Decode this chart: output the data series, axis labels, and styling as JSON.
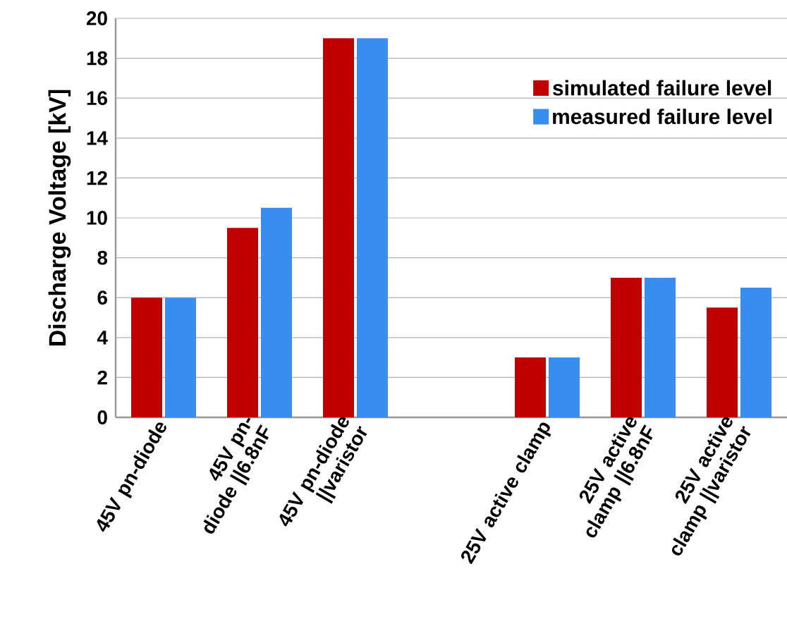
{
  "chart_data": {
    "type": "bar",
    "ylabel": "Discharge Voltage [kV]",
    "categories": [
      "45V pn-diode",
      "45V pn-diode ||6.8nF",
      "45V pn-diode ||varistor",
      null,
      "25V active clamp",
      "25V active clamp ||6.8nF",
      "25V active clamp ||varistor"
    ],
    "series": [
      {
        "name": "simulated failure level",
        "color": "#c00000",
        "values": [
          6,
          9.5,
          19,
          null,
          3,
          7,
          5.5
        ]
      },
      {
        "name": "measured failure level",
        "color": "#3a8df0",
        "values": [
          6,
          10.5,
          19,
          null,
          3,
          7,
          6.5
        ]
      }
    ],
    "ylim": [
      0,
      20
    ],
    "yticks": [
      0,
      2,
      4,
      6,
      8,
      10,
      12,
      14,
      16,
      18,
      20
    ],
    "grid": "y",
    "legend": "top right"
  }
}
